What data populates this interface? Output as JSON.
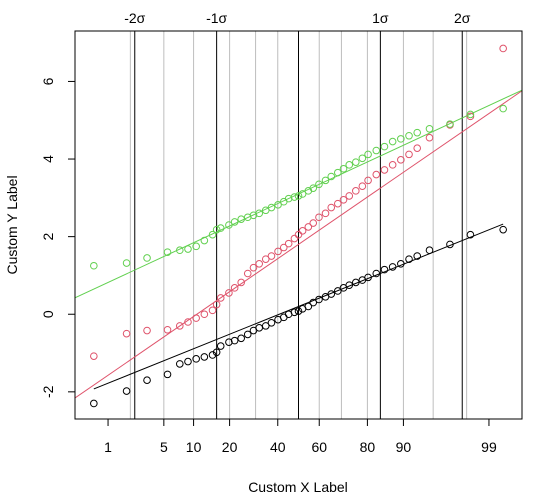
{
  "chart_data": {
    "type": "scatter",
    "title": "",
    "xlabel": "Custom X Label",
    "ylabel": "Custom Y Label",
    "xlim": [
      -2.73,
      2.73
    ],
    "ylim": [
      -2.7,
      7.3
    ],
    "grid": true,
    "legend": "none",
    "x_scale": "normal probability",
    "x_ticks": [
      {
        "label": "1",
        "p": 1
      },
      {
        "label": "5",
        "p": 5
      },
      {
        "label": "10",
        "p": 10
      },
      {
        "label": "20",
        "p": 20
      },
      {
        "label": "40",
        "p": 40
      },
      {
        "label": "60",
        "p": 60
      },
      {
        "label": "80",
        "p": 80
      },
      {
        "label": "90",
        "p": 90
      },
      {
        "label": "99",
        "p": 99
      }
    ],
    "x_minor_grid_p": [
      2,
      5,
      10,
      20,
      30,
      40,
      60,
      70,
      80,
      90,
      95,
      98
    ],
    "sigma_lines": [
      {
        "label": "-2σ",
        "z": -2
      },
      {
        "label": "-1σ",
        "z": -1
      },
      {
        "label": "",
        "z": 0
      },
      {
        "label": "1σ",
        "z": 1
      },
      {
        "label": "2σ",
        "z": 2
      }
    ],
    "y_ticks": [
      -2,
      0,
      2,
      4,
      6
    ],
    "series": [
      {
        "color": "#000000",
        "line": {
          "intercept": 0.2,
          "slope": 0.85
        },
        "x_range": [
          -2.5,
          2.5
        ],
        "x": [
          -2.5,
          -2.1,
          -1.85,
          -1.6,
          -1.45,
          -1.35,
          -1.25,
          -1.15,
          -1.05,
          -1.0,
          -0.95,
          -0.85,
          -0.78,
          -0.7,
          -0.62,
          -0.55,
          -0.48,
          -0.4,
          -0.33,
          -0.25,
          -0.18,
          -0.12,
          -0.05,
          0.0,
          0.05,
          0.12,
          0.18,
          0.25,
          0.33,
          0.4,
          0.48,
          0.55,
          0.62,
          0.7,
          0.78,
          0.85,
          0.95,
          1.05,
          1.15,
          1.25,
          1.35,
          1.45,
          1.6,
          1.85,
          2.1,
          2.5
        ],
        "y": [
          -2.3,
          -1.98,
          -1.7,
          -1.55,
          -1.28,
          -1.22,
          -1.15,
          -1.1,
          -1.05,
          -0.98,
          -0.82,
          -0.72,
          -0.68,
          -0.62,
          -0.52,
          -0.42,
          -0.35,
          -0.3,
          -0.22,
          -0.14,
          -0.08,
          0.0,
          0.05,
          0.08,
          0.14,
          0.2,
          0.3,
          0.38,
          0.45,
          0.52,
          0.6,
          0.68,
          0.75,
          0.82,
          0.88,
          0.95,
          1.05,
          1.15,
          1.22,
          1.3,
          1.42,
          1.5,
          1.65,
          1.8,
          2.05,
          2.18
        ]
      },
      {
        "color": "#df536b",
        "line": {
          "intercept": 1.8,
          "slope": 1.45
        },
        "x_range": [
          -2.73,
          2.73
        ],
        "x": [
          -2.5,
          -2.1,
          -1.85,
          -1.6,
          -1.45,
          -1.35,
          -1.25,
          -1.15,
          -1.05,
          -1.0,
          -0.95,
          -0.85,
          -0.78,
          -0.7,
          -0.62,
          -0.55,
          -0.48,
          -0.4,
          -0.33,
          -0.25,
          -0.18,
          -0.12,
          -0.05,
          0.0,
          0.05,
          0.12,
          0.18,
          0.25,
          0.33,
          0.4,
          0.48,
          0.55,
          0.62,
          0.7,
          0.78,
          0.85,
          0.95,
          1.05,
          1.15,
          1.25,
          1.35,
          1.45,
          1.6,
          1.85,
          2.1,
          2.5
        ],
        "y": [
          -1.08,
          -0.5,
          -0.42,
          -0.4,
          -0.3,
          -0.2,
          -0.1,
          0.0,
          0.1,
          0.25,
          0.42,
          0.55,
          0.68,
          0.82,
          1.05,
          1.2,
          1.3,
          1.42,
          1.5,
          1.62,
          1.72,
          1.82,
          1.95,
          2.05,
          2.15,
          2.25,
          2.35,
          2.5,
          2.6,
          2.75,
          2.85,
          2.95,
          3.05,
          3.18,
          3.3,
          3.45,
          3.6,
          3.72,
          3.85,
          3.98,
          4.12,
          4.28,
          4.55,
          4.88,
          5.1,
          6.85
        ]
      },
      {
        "color": "#61d04f",
        "line": {
          "intercept": 3.1,
          "slope": 0.98
        },
        "x_range": [
          -2.73,
          2.73
        ],
        "x": [
          -2.5,
          -2.1,
          -1.85,
          -1.6,
          -1.45,
          -1.35,
          -1.25,
          -1.15,
          -1.05,
          -1.0,
          -0.95,
          -0.85,
          -0.78,
          -0.7,
          -0.62,
          -0.55,
          -0.48,
          -0.4,
          -0.33,
          -0.25,
          -0.18,
          -0.12,
          -0.05,
          0.0,
          0.05,
          0.12,
          0.18,
          0.25,
          0.33,
          0.4,
          0.48,
          0.55,
          0.62,
          0.7,
          0.78,
          0.85,
          0.95,
          1.05,
          1.15,
          1.25,
          1.35,
          1.45,
          1.6,
          1.85,
          2.1,
          2.5
        ],
        "y": [
          1.25,
          1.32,
          1.45,
          1.6,
          1.65,
          1.68,
          1.75,
          1.9,
          2.05,
          2.18,
          2.22,
          2.3,
          2.38,
          2.45,
          2.5,
          2.55,
          2.6,
          2.68,
          2.75,
          2.82,
          2.9,
          2.98,
          3.02,
          3.05,
          3.1,
          3.18,
          3.25,
          3.35,
          3.45,
          3.55,
          3.65,
          3.75,
          3.85,
          3.92,
          4.02,
          4.12,
          4.22,
          4.32,
          4.45,
          4.52,
          4.6,
          4.68,
          4.78,
          4.9,
          5.15,
          5.3
        ]
      }
    ]
  }
}
